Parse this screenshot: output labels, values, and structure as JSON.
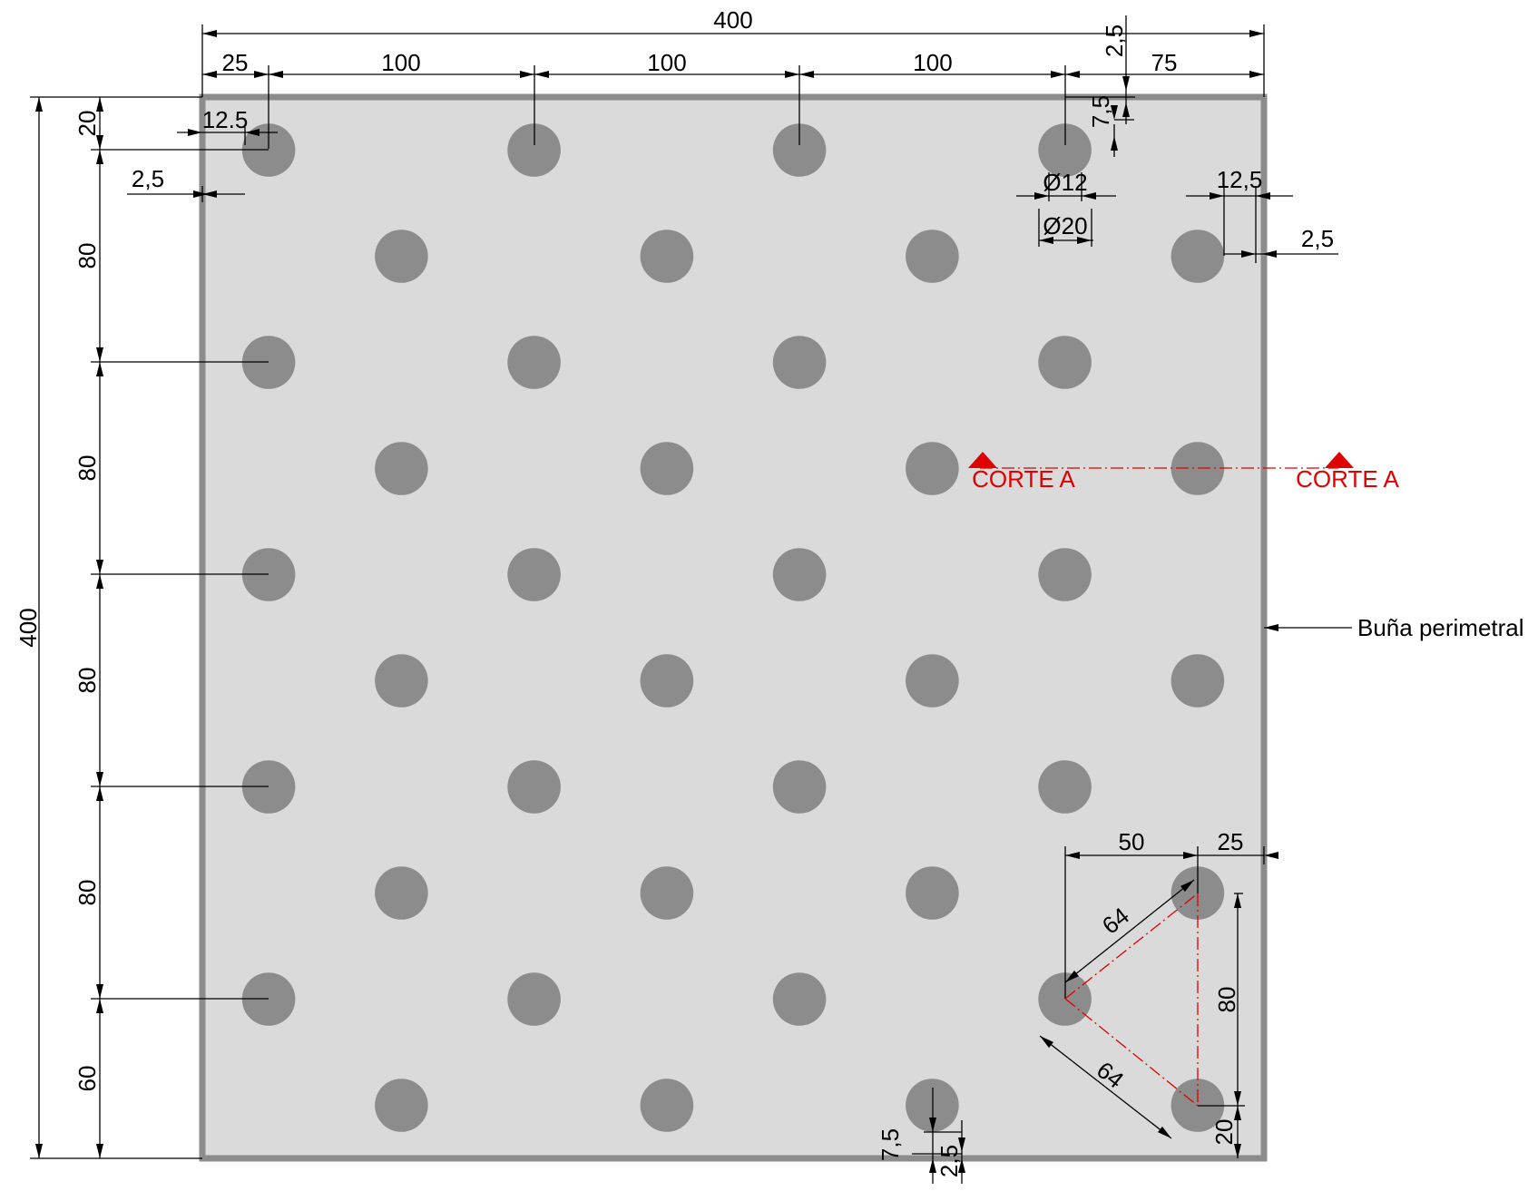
{
  "colors": {
    "tile_fill": "#dadada",
    "tile_border": "#8c8c8c",
    "dot": "#8c8c8c",
    "section_marker": "#e00000",
    "line": "#000000"
  },
  "dims": {
    "overall_width": "400",
    "overall_height": "400",
    "top_seg_1": "25",
    "top_seg_2": "100",
    "top_seg_3": "100",
    "top_seg_4": "100",
    "top_seg_5": "75",
    "top_right_groove": "2,5",
    "top_right_offset": "7,5",
    "left_seg_1": "20",
    "left_seg_2": "80",
    "left_seg_3": "80",
    "left_seg_4": "80",
    "left_seg_5": "80",
    "left_seg_6": "60",
    "dot_radius": "12.5",
    "left_groove": "2,5",
    "inner_diameter": "Ø12",
    "outer_diameter": "Ø20",
    "right_radius": "12,5",
    "right_groove": "2,5",
    "tri_horizontal": "50",
    "tri_edge": "25",
    "tri_diag_top": "64",
    "tri_diag_bottom": "64",
    "tri_vertical": "80",
    "bottom_right_offset": "20",
    "bottom_offset": "7,5",
    "bottom_groove": "2,5"
  },
  "labels": {
    "section_left": "CORTE A",
    "section_right": "CORTE A",
    "perimeter_groove": "Buña perimetral"
  }
}
